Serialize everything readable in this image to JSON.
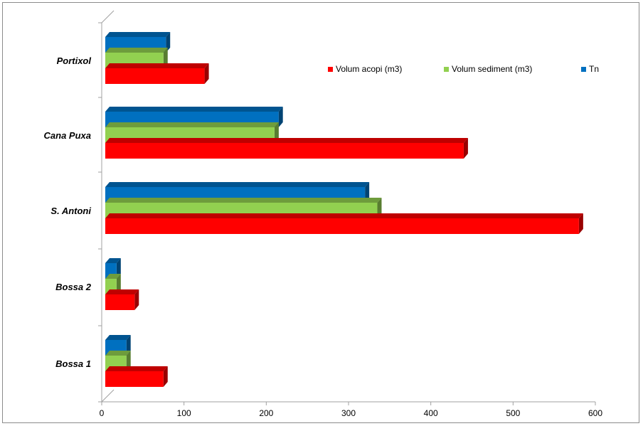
{
  "chart_data": {
    "type": "bar",
    "orientation": "horizontal",
    "style": "3d",
    "categories": [
      "Bossa 1",
      "Bossa 2",
      "S. Antoni",
      "Cana Puxa",
      "Portixol"
    ],
    "series": [
      {
        "name": "Volum acopi (m3)",
        "color": "#ff0000",
        "values": [
          75,
          40,
          580,
          440,
          125
        ]
      },
      {
        "name": "Volum sediment  (m3)",
        "color": "#92d050",
        "values": [
          30,
          18,
          335,
          210,
          75
        ]
      },
      {
        "name": "Tn",
        "color": "#0070c0",
        "values": [
          30,
          18,
          320,
          215,
          78
        ]
      }
    ],
    "x_ticks": [
      "0",
      "100",
      "200",
      "300",
      "400",
      "500",
      "600"
    ],
    "xlim": [
      0,
      600
    ],
    "grid": false,
    "legend_position": "top-right"
  }
}
